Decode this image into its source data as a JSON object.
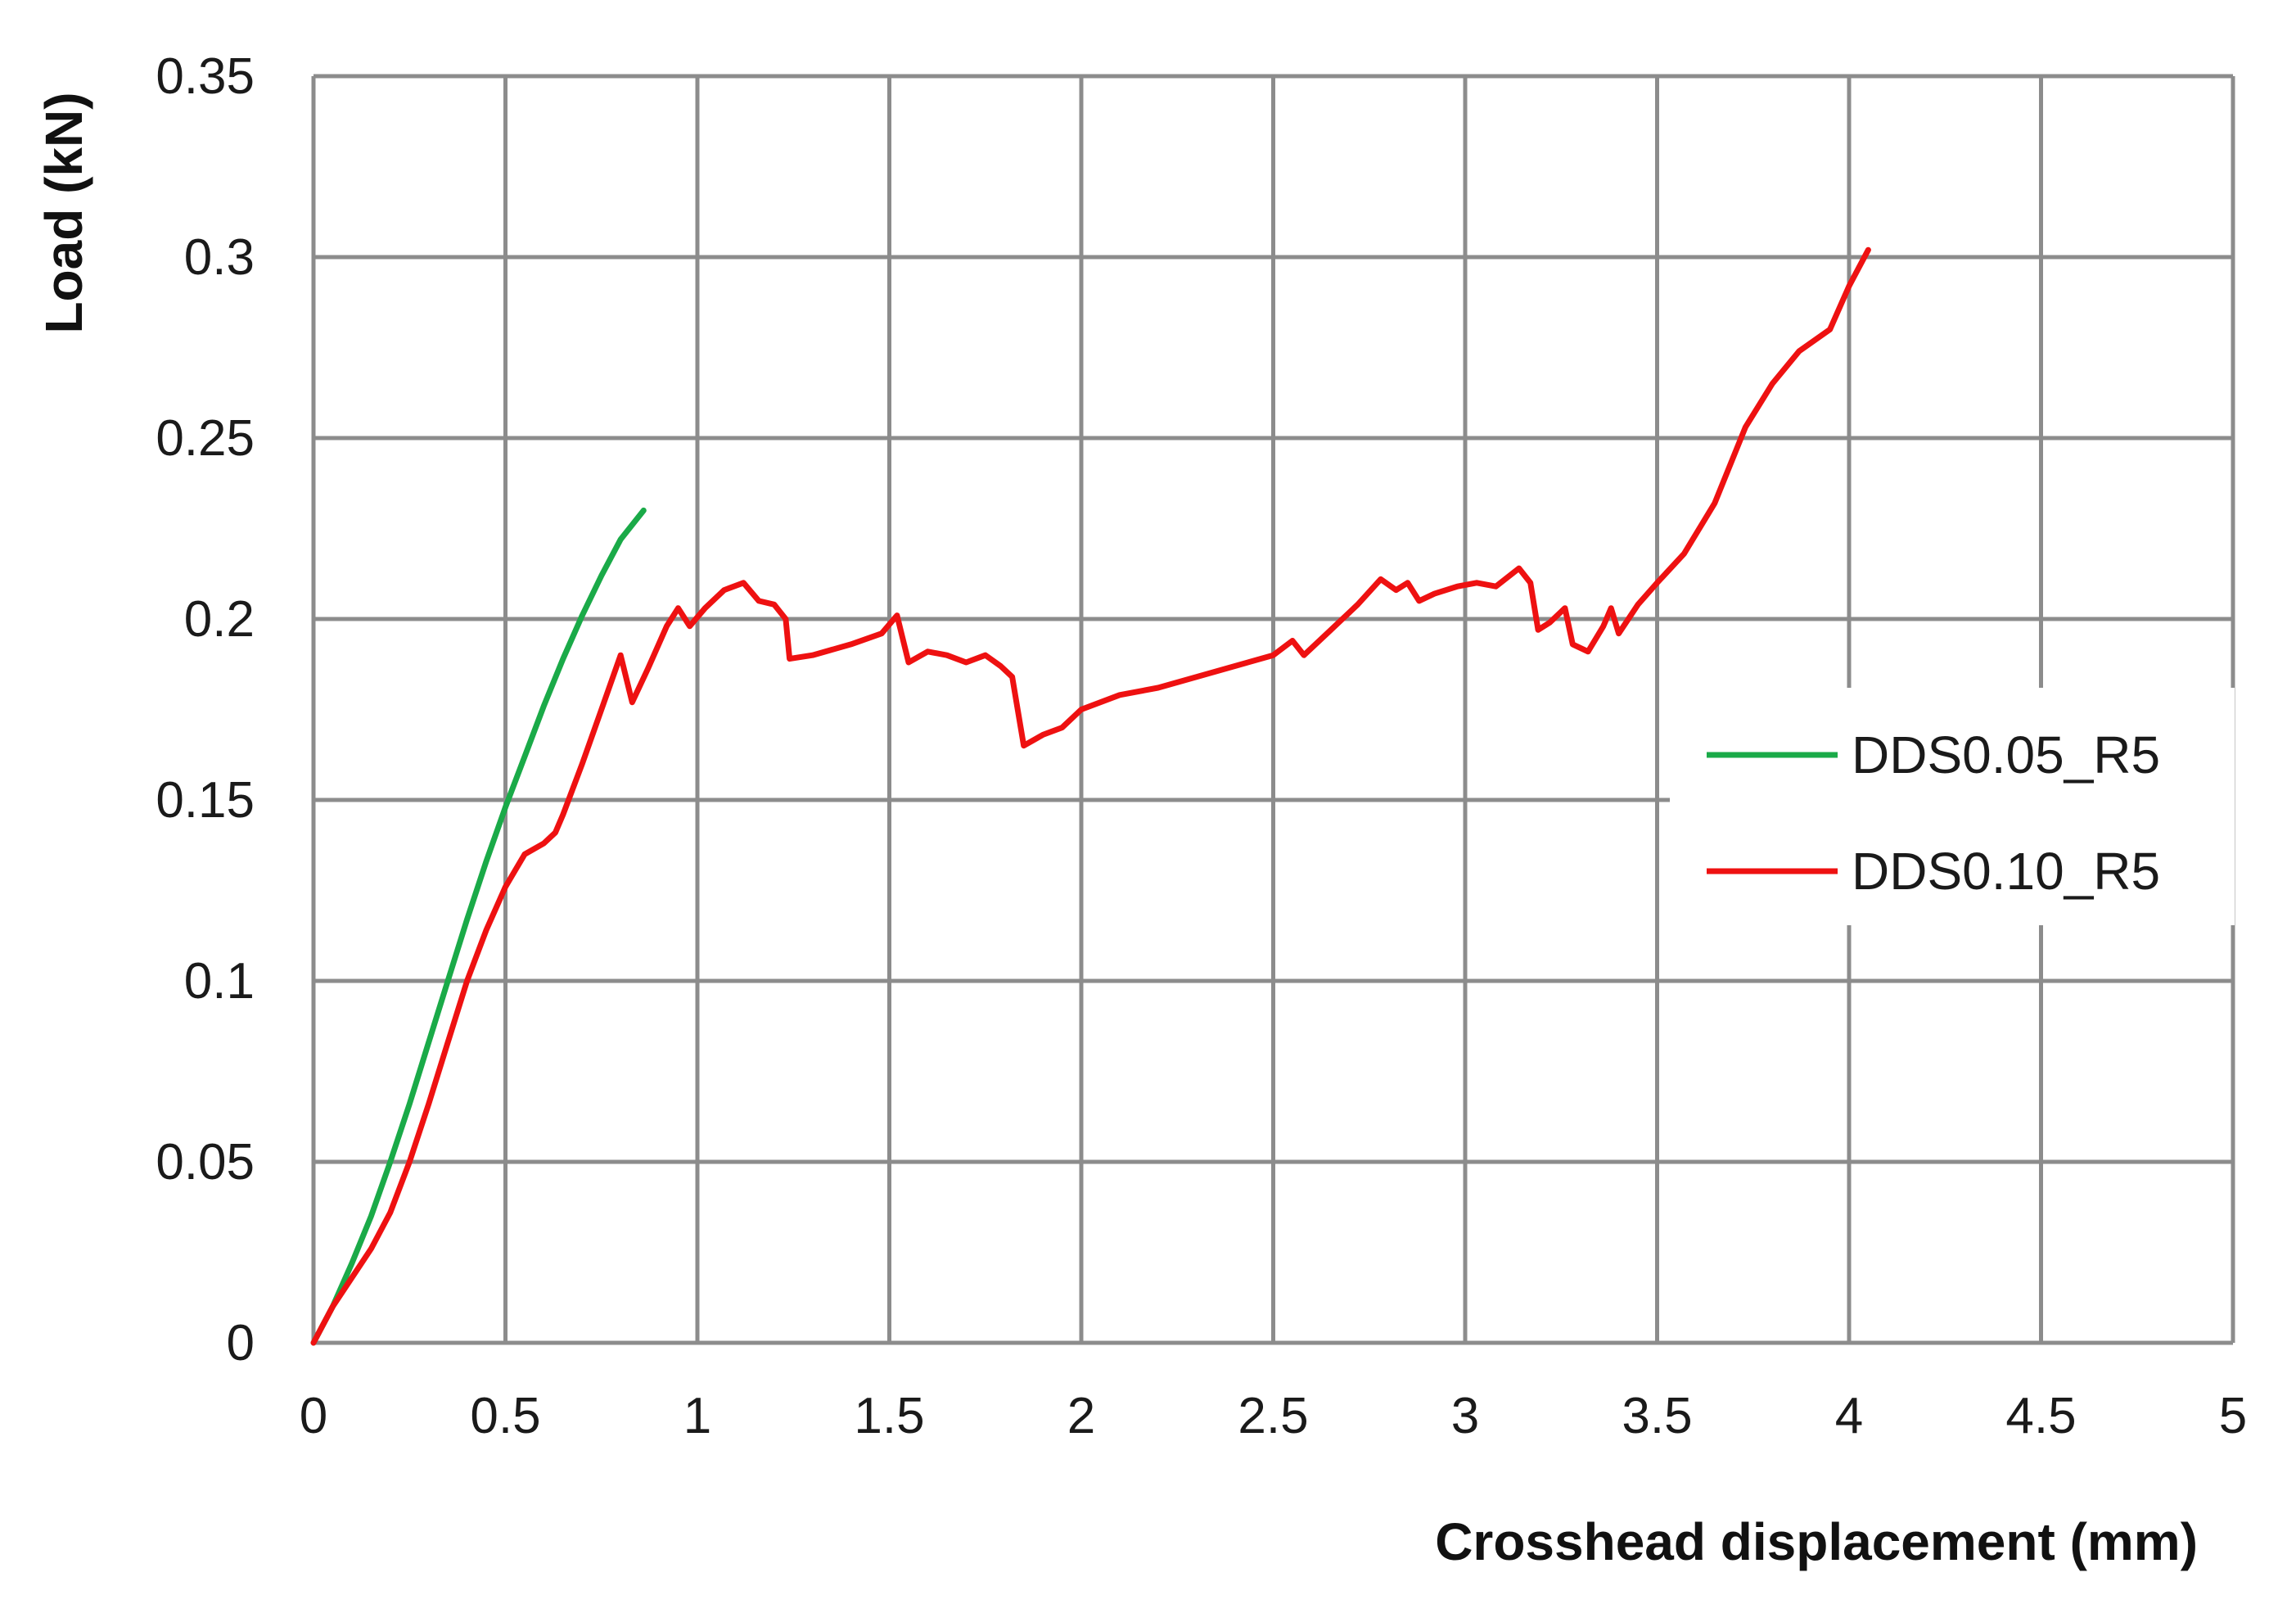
{
  "chart_data": {
    "type": "line",
    "xlabel": "Crosshead displacement (mm)",
    "ylabel": "Load (kN)",
    "xlim": [
      0,
      5
    ],
    "ylim": [
      0,
      0.35
    ],
    "x_ticks": [
      "0",
      "0.5",
      "1",
      "1.5",
      "2",
      "2.5",
      "3",
      "3.5",
      "4",
      "4.5",
      "5"
    ],
    "y_ticks": [
      "0",
      "0.05",
      "0.1",
      "0.15",
      "0.2",
      "0.25",
      "0.3",
      "0.35"
    ],
    "grid": true,
    "legend_position": "right",
    "series": [
      {
        "name": "DDS0.05_R5",
        "color": "#1aaa48",
        "points": [
          [
            0,
            0
          ],
          [
            0.05,
            0.01
          ],
          [
            0.1,
            0.022
          ],
          [
            0.15,
            0.035
          ],
          [
            0.2,
            0.05
          ],
          [
            0.25,
            0.066
          ],
          [
            0.3,
            0.083
          ],
          [
            0.35,
            0.1
          ],
          [
            0.4,
            0.117
          ],
          [
            0.45,
            0.133
          ],
          [
            0.5,
            0.148
          ],
          [
            0.55,
            0.162
          ],
          [
            0.6,
            0.176
          ],
          [
            0.65,
            0.189
          ],
          [
            0.7,
            0.201
          ],
          [
            0.75,
            0.212
          ],
          [
            0.8,
            0.222
          ],
          [
            0.86,
            0.23
          ]
        ]
      },
      {
        "name": "DDS0.10_R5",
        "color": "#ee1111",
        "points": [
          [
            0,
            0
          ],
          [
            0.05,
            0.01
          ],
          [
            0.1,
            0.018
          ],
          [
            0.15,
            0.026
          ],
          [
            0.2,
            0.036
          ],
          [
            0.25,
            0.05
          ],
          [
            0.3,
            0.066
          ],
          [
            0.35,
            0.083
          ],
          [
            0.4,
            0.1
          ],
          [
            0.45,
            0.114
          ],
          [
            0.5,
            0.126
          ],
          [
            0.55,
            0.135
          ],
          [
            0.6,
            0.138
          ],
          [
            0.63,
            0.141
          ],
          [
            0.65,
            0.146
          ],
          [
            0.7,
            0.16
          ],
          [
            0.75,
            0.175
          ],
          [
            0.8,
            0.19
          ],
          [
            0.83,
            0.177
          ],
          [
            0.87,
            0.186
          ],
          [
            0.92,
            0.198
          ],
          [
            0.95,
            0.203
          ],
          [
            0.98,
            0.198
          ],
          [
            1.02,
            0.203
          ],
          [
            1.07,
            0.208
          ],
          [
            1.12,
            0.21
          ],
          [
            1.16,
            0.205
          ],
          [
            1.2,
            0.204
          ],
          [
            1.23,
            0.2
          ],
          [
            1.24,
            0.189
          ],
          [
            1.3,
            0.19
          ],
          [
            1.4,
            0.193
          ],
          [
            1.48,
            0.196
          ],
          [
            1.52,
            0.201
          ],
          [
            1.55,
            0.188
          ],
          [
            1.6,
            0.191
          ],
          [
            1.65,
            0.19
          ],
          [
            1.7,
            0.188
          ],
          [
            1.75,
            0.19
          ],
          [
            1.79,
            0.187
          ],
          [
            1.82,
            0.184
          ],
          [
            1.85,
            0.165
          ],
          [
            1.9,
            0.168
          ],
          [
            1.95,
            0.17
          ],
          [
            2.0,
            0.175
          ],
          [
            2.1,
            0.179
          ],
          [
            2.2,
            0.181
          ],
          [
            2.3,
            0.184
          ],
          [
            2.4,
            0.187
          ],
          [
            2.5,
            0.19
          ],
          [
            2.55,
            0.194
          ],
          [
            2.58,
            0.19
          ],
          [
            2.65,
            0.197
          ],
          [
            2.72,
            0.204
          ],
          [
            2.78,
            0.211
          ],
          [
            2.82,
            0.208
          ],
          [
            2.85,
            0.21
          ],
          [
            2.88,
            0.205
          ],
          [
            2.92,
            0.207
          ],
          [
            2.98,
            0.209
          ],
          [
            3.03,
            0.21
          ],
          [
            3.08,
            0.209
          ],
          [
            3.14,
            0.214
          ],
          [
            3.17,
            0.21
          ],
          [
            3.19,
            0.197
          ],
          [
            3.22,
            0.199
          ],
          [
            3.26,
            0.203
          ],
          [
            3.28,
            0.193
          ],
          [
            3.32,
            0.191
          ],
          [
            3.36,
            0.198
          ],
          [
            3.38,
            0.203
          ],
          [
            3.4,
            0.196
          ],
          [
            3.45,
            0.204
          ],
          [
            3.5,
            0.21
          ],
          [
            3.57,
            0.218
          ],
          [
            3.65,
            0.232
          ],
          [
            3.73,
            0.253
          ],
          [
            3.8,
            0.265
          ],
          [
            3.87,
            0.274
          ],
          [
            3.95,
            0.28
          ],
          [
            4.0,
            0.292
          ],
          [
            4.05,
            0.302
          ]
        ]
      }
    ]
  }
}
